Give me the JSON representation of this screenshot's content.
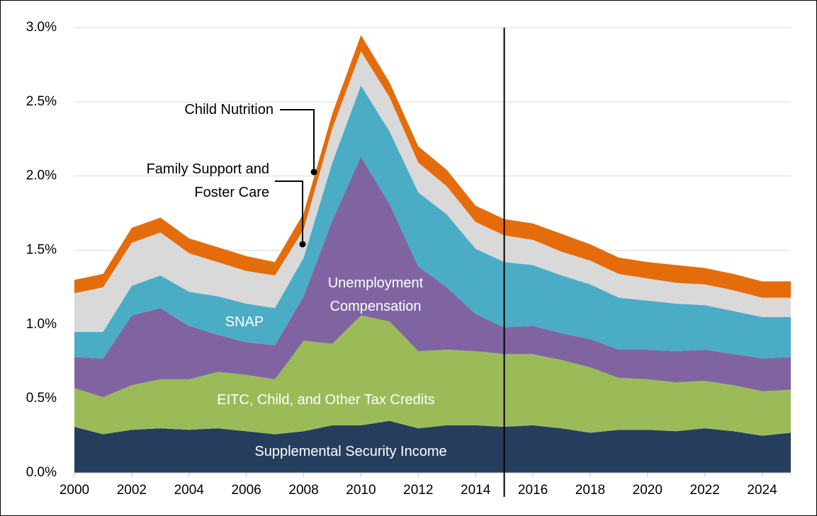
{
  "chart_data": {
    "type": "stacked_area",
    "x": [
      2000,
      2001,
      2002,
      2003,
      2004,
      2005,
      2006,
      2007,
      2008,
      2009,
      2010,
      2011,
      2012,
      2013,
      2014,
      2015,
      2016,
      2017,
      2018,
      2019,
      2020,
      2021,
      2022,
      2023,
      2024,
      2025
    ],
    "xlim": [
      2000,
      2025
    ],
    "xticks": [
      2000,
      2002,
      2004,
      2006,
      2008,
      2010,
      2012,
      2014,
      2016,
      2018,
      2020,
      2022,
      2024
    ],
    "ylim": [
      0,
      3.0
    ],
    "yticks": [
      {
        "value": 0,
        "label": "0.0%"
      },
      {
        "value": 0.5,
        "label": "0.5%"
      },
      {
        "value": 1.0,
        "label": "1.0%"
      },
      {
        "value": 1.5,
        "label": "1.5%"
      },
      {
        "value": 2.0,
        "label": "2.0%"
      },
      {
        "value": 2.5,
        "label": "2.5%"
      },
      {
        "value": 3.0,
        "label": "3.0%"
      }
    ],
    "grid": true,
    "vertical_line_x": 2015,
    "series": [
      {
        "name": "Supplemental Security Income",
        "color": "#253e5d",
        "values": [
          0.31,
          0.26,
          0.29,
          0.3,
          0.29,
          0.3,
          0.28,
          0.26,
          0.28,
          0.32,
          0.32,
          0.35,
          0.3,
          0.32,
          0.32,
          0.31,
          0.32,
          0.3,
          0.27,
          0.29,
          0.29,
          0.28,
          0.3,
          0.28,
          0.25,
          0.27
        ]
      },
      {
        "name": "EITC, Child, and Other Tax Credits",
        "color": "#9bbb59",
        "values": [
          0.26,
          0.25,
          0.3,
          0.33,
          0.34,
          0.38,
          0.38,
          0.37,
          0.61,
          0.55,
          0.74,
          0.67,
          0.52,
          0.51,
          0.5,
          0.49,
          0.48,
          0.46,
          0.44,
          0.35,
          0.34,
          0.33,
          0.32,
          0.31,
          0.3,
          0.29
        ]
      },
      {
        "name": "Unemployment Compensation",
        "color": "#8064a2",
        "values": [
          0.21,
          0.26,
          0.47,
          0.48,
          0.36,
          0.25,
          0.22,
          0.23,
          0.3,
          0.83,
          1.07,
          0.79,
          0.57,
          0.42,
          0.25,
          0.18,
          0.19,
          0.18,
          0.19,
          0.19,
          0.2,
          0.21,
          0.21,
          0.21,
          0.22,
          0.22
        ]
      },
      {
        "name": "SNAP",
        "color": "#4bacc6",
        "values": [
          0.17,
          0.18,
          0.2,
          0.22,
          0.23,
          0.26,
          0.26,
          0.25,
          0.26,
          0.39,
          0.48,
          0.49,
          0.5,
          0.49,
          0.44,
          0.44,
          0.41,
          0.39,
          0.37,
          0.35,
          0.33,
          0.32,
          0.3,
          0.29,
          0.28,
          0.27
        ]
      },
      {
        "name": "Family Support and Foster Care",
        "color": "#d9d9d9",
        "values": [
          0.26,
          0.3,
          0.29,
          0.29,
          0.26,
          0.23,
          0.22,
          0.22,
          0.19,
          0.23,
          0.23,
          0.23,
          0.2,
          0.19,
          0.18,
          0.18,
          0.17,
          0.16,
          0.16,
          0.16,
          0.15,
          0.14,
          0.14,
          0.14,
          0.13,
          0.13
        ]
      },
      {
        "name": "Child Nutrition",
        "color": "#e46c0a",
        "values": [
          0.09,
          0.09,
          0.1,
          0.1,
          0.1,
          0.1,
          0.1,
          0.09,
          0.11,
          0.1,
          0.11,
          0.1,
          0.11,
          0.11,
          0.11,
          0.11,
          0.11,
          0.12,
          0.11,
          0.11,
          0.11,
          0.12,
          0.11,
          0.11,
          0.11,
          0.11
        ]
      }
    ]
  }
}
